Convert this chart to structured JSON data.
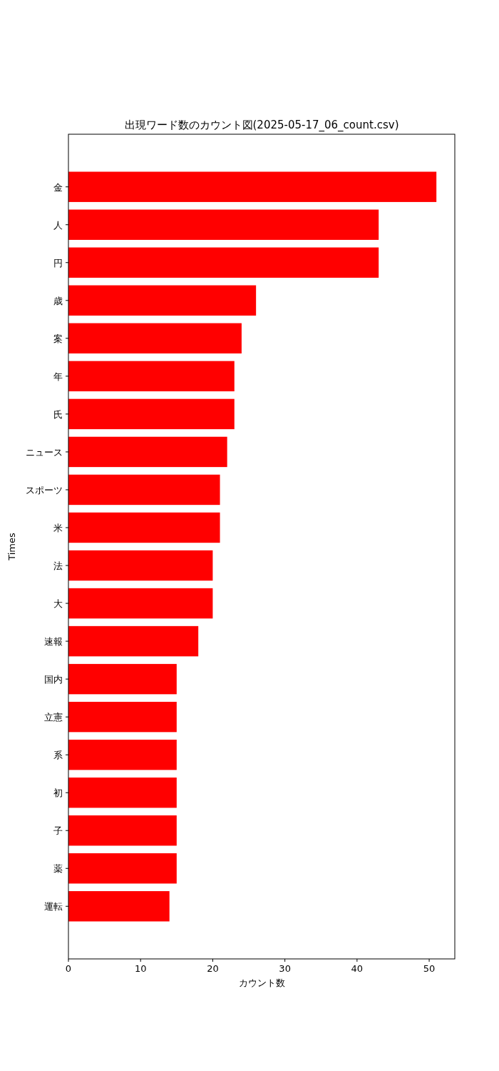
{
  "chart_data": {
    "type": "bar",
    "orientation": "horizontal",
    "title": "出現ワード数のカウント図(2025-05-17_06_count.csv)",
    "xlabel": "カウント数",
    "ylabel": "Times",
    "categories": [
      "金",
      "人",
      "円",
      "歳",
      "案",
      "年",
      "氏",
      "ニュース",
      "スポーツ",
      "米",
      "法",
      "大",
      "速報",
      "国内",
      "立憲",
      "系",
      "初",
      "子",
      "薬",
      "運転"
    ],
    "values": [
      51,
      43,
      43,
      26,
      24,
      23,
      23,
      22,
      21,
      21,
      20,
      20,
      18,
      15,
      15,
      15,
      15,
      15,
      15,
      14
    ],
    "color": "#ff0000",
    "xlim": [
      0,
      53.55
    ],
    "xticks": [
      0,
      10,
      20,
      30,
      40,
      50
    ],
    "grid": false
  }
}
